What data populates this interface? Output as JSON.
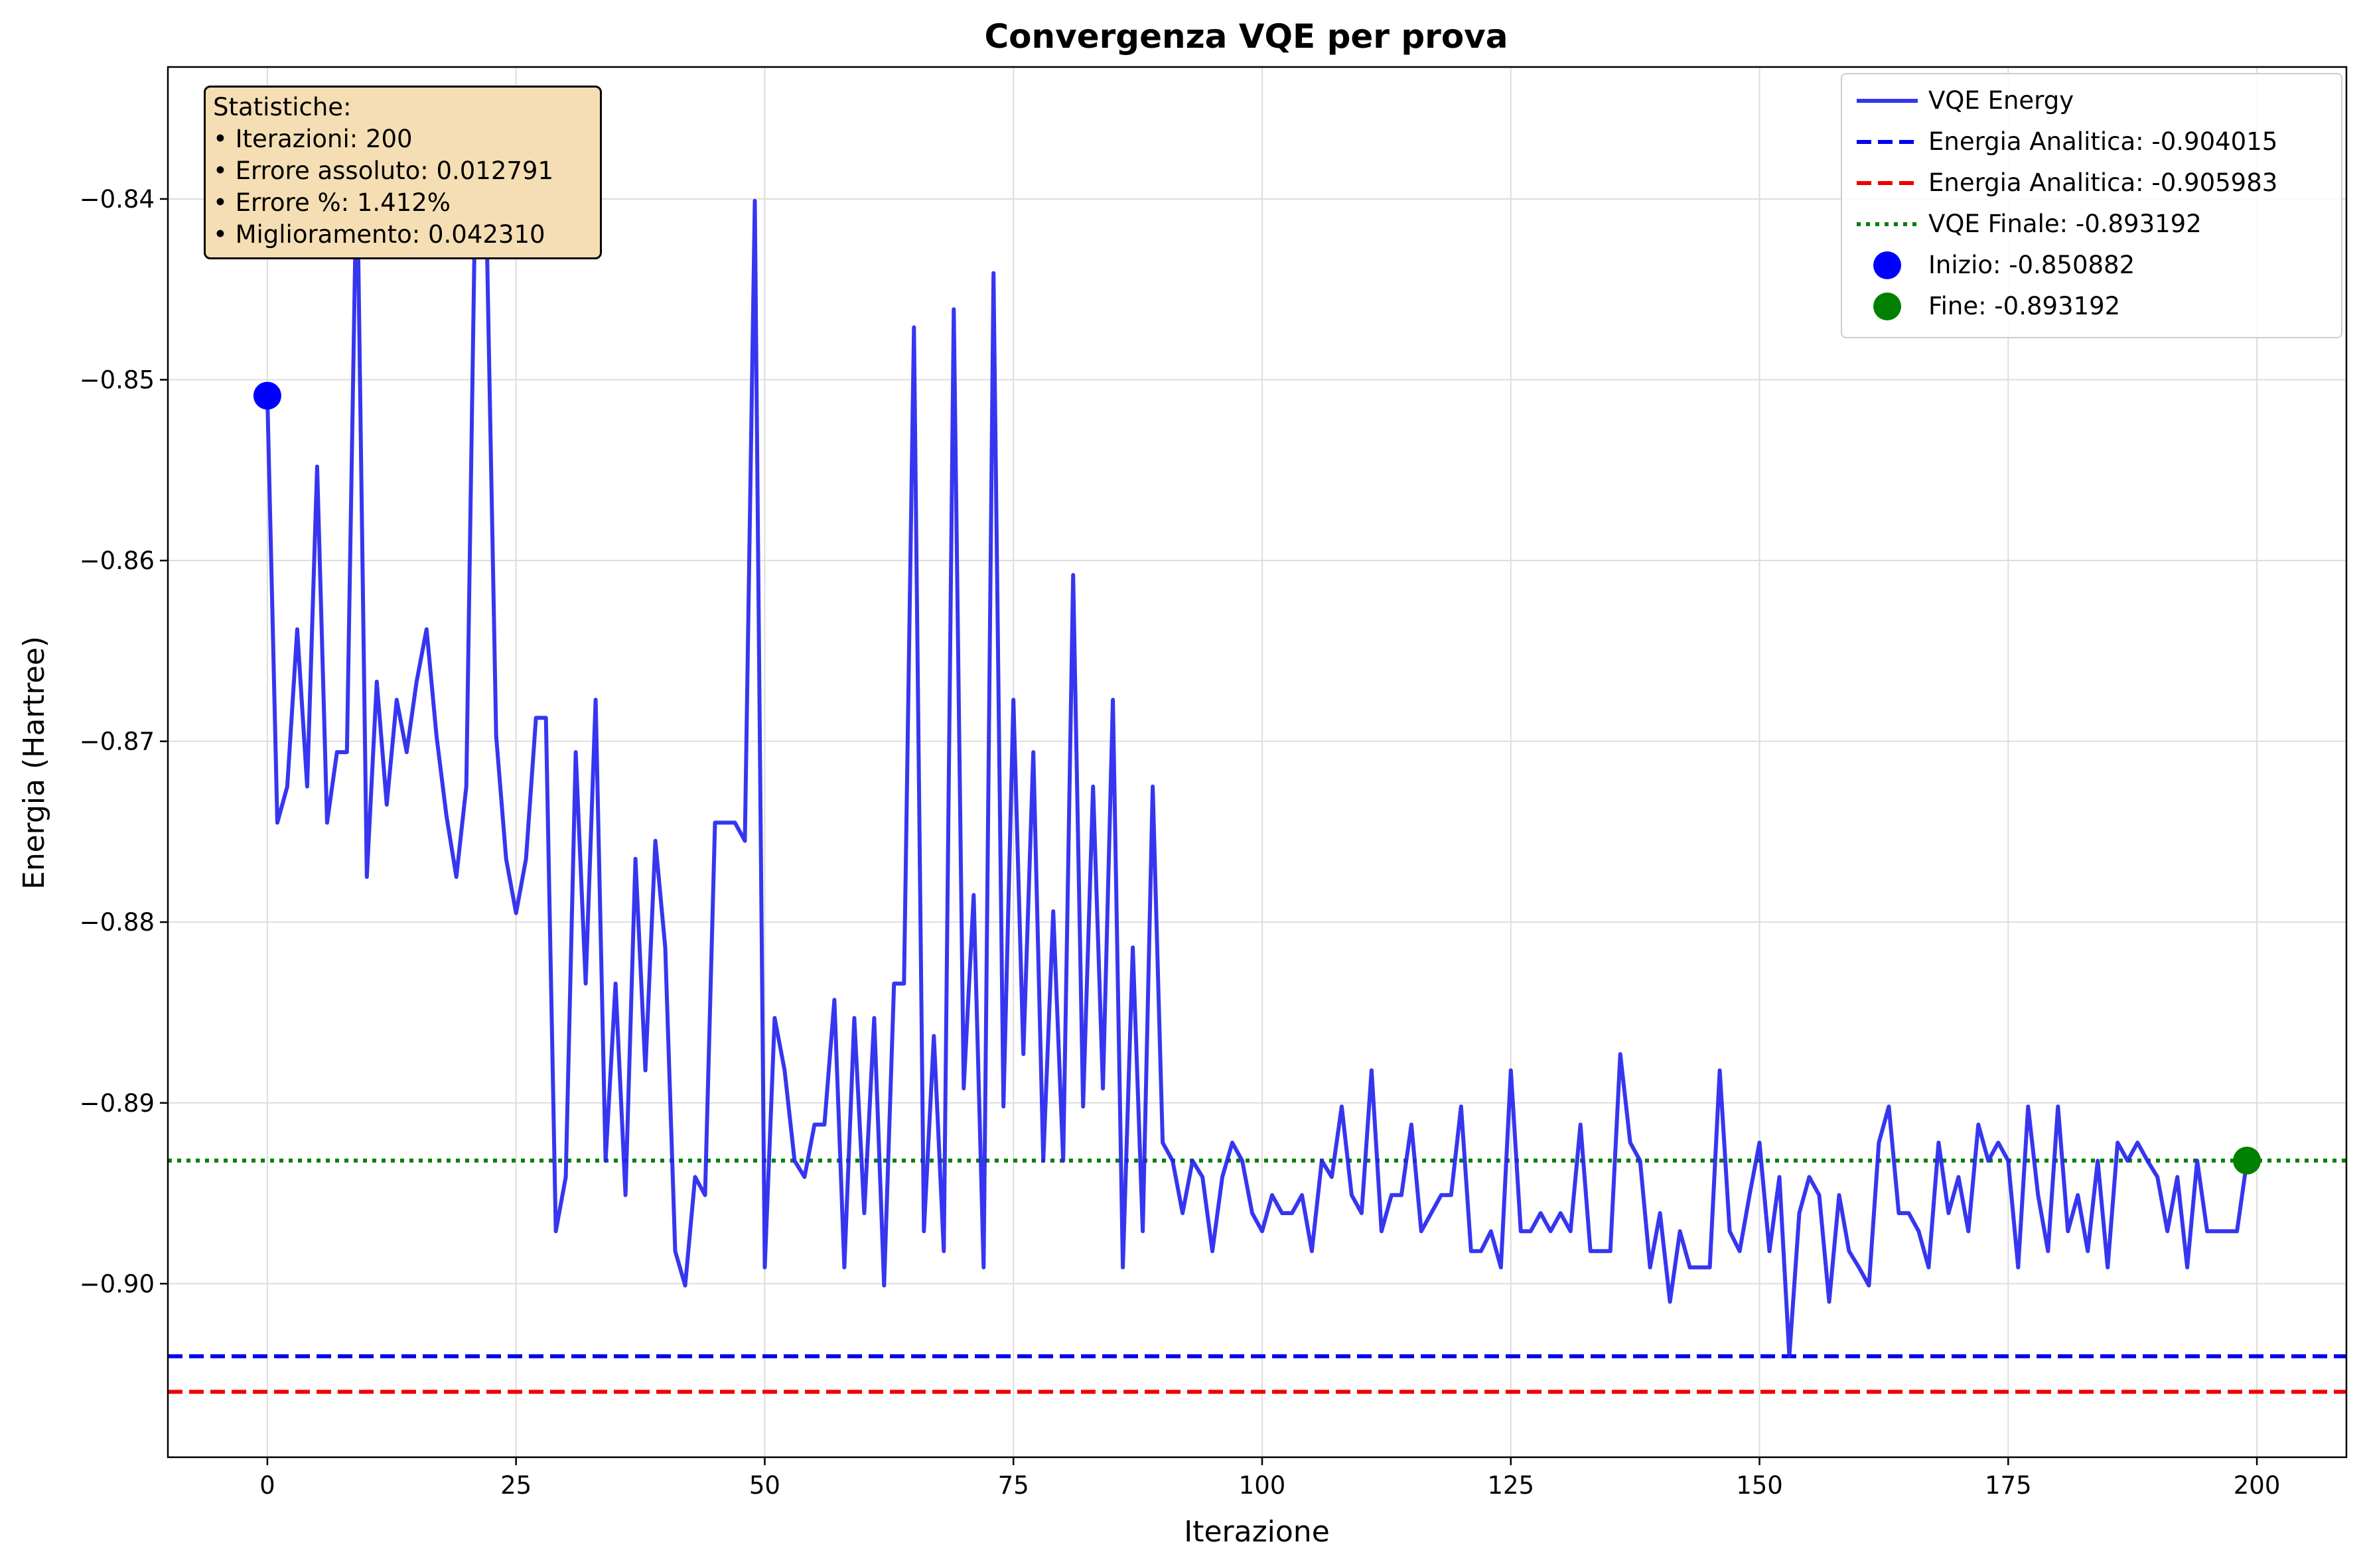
{
  "chart_data": {
    "type": "line",
    "title": "Convergenza VQE per prova",
    "xlabel": "Iterazione",
    "ylabel": "Energia (Hartree)",
    "xlim": [
      -10,
      209
    ],
    "ylim": [
      -0.9096,
      -0.8327
    ],
    "x_ticks": [
      0,
      25,
      50,
      75,
      100,
      125,
      150,
      175,
      200
    ],
    "y_ticks": [
      -0.84,
      -0.85,
      -0.86,
      -0.87,
      -0.88,
      -0.89,
      -0.9
    ],
    "x_tick_labels": [
      "0",
      "25",
      "50",
      "75",
      "100",
      "125",
      "150",
      "175",
      "200"
    ],
    "y_tick_labels": [
      "−0.84",
      "−0.85",
      "−0.86",
      "−0.87",
      "−0.88",
      "−0.89",
      "−0.90"
    ],
    "grid": true,
    "legend_position": "top-right",
    "series": [
      {
        "name": "VQE Energy",
        "color": "#2020ee",
        "style": "solid",
        "x_start": 0,
        "x_step": 1,
        "values": [
          -0.8509,
          -0.8745,
          -0.8725,
          -0.8638,
          -0.8725,
          -0.8548,
          -0.8745,
          -0.8706,
          -0.8706,
          -0.8375,
          -0.8775,
          -0.8667,
          -0.8735,
          -0.8677,
          -0.8706,
          -0.8667,
          -0.8638,
          -0.8697,
          -0.8741,
          -0.8775,
          -0.8725,
          -0.8362,
          -0.8404,
          -0.8697,
          -0.8765,
          -0.8795,
          -0.8765,
          -0.8687,
          -0.8687,
          -0.8971,
          -0.8941,
          -0.8706,
          -0.8834,
          -0.8677,
          -0.8932,
          -0.8834,
          -0.8951,
          -0.8765,
          -0.8882,
          -0.8755,
          -0.8814,
          -0.8982,
          -0.9001,
          -0.8941,
          -0.8951,
          -0.8745,
          -0.8745,
          -0.8745,
          -0.8755,
          -0.8401,
          -0.8991,
          -0.8853,
          -0.8882,
          -0.8932,
          -0.8941,
          -0.8912,
          -0.8912,
          -0.8843,
          -0.8991,
          -0.8853,
          -0.8961,
          -0.8853,
          -0.9001,
          -0.8834,
          -0.8834,
          -0.8471,
          -0.8971,
          -0.8863,
          -0.8982,
          -0.8461,
          -0.8892,
          -0.8785,
          -0.8991,
          -0.8441,
          -0.8902,
          -0.8677,
          -0.8873,
          -0.8706,
          -0.8932,
          -0.8794,
          -0.8932,
          -0.8608,
          -0.8902,
          -0.8725,
          -0.8892,
          -0.8677,
          -0.8991,
          -0.8814,
          -0.8971,
          -0.8725,
          -0.8922,
          -0.8932,
          -0.8961,
          -0.8932,
          -0.8941,
          -0.8982,
          -0.8941,
          -0.8922,
          -0.8932,
          -0.8961,
          -0.8971,
          -0.8951,
          -0.8961,
          -0.8961,
          -0.8951,
          -0.8982,
          -0.8932,
          -0.8941,
          -0.8902,
          -0.8951,
          -0.8961,
          -0.8882,
          -0.8971,
          -0.8951,
          -0.8951,
          -0.8912,
          -0.8971,
          -0.8961,
          -0.8951,
          -0.8951,
          -0.8902,
          -0.8982,
          -0.8982,
          -0.8971,
          -0.8991,
          -0.8882,
          -0.8971,
          -0.8971,
          -0.8961,
          -0.8971,
          -0.8961,
          -0.8971,
          -0.8912,
          -0.8982,
          -0.8982,
          -0.8982,
          -0.8873,
          -0.8922,
          -0.8932,
          -0.8991,
          -0.8961,
          -0.901,
          -0.8971,
          -0.8991,
          -0.8991,
          -0.8991,
          -0.8882,
          -0.8971,
          -0.8982,
          -0.8951,
          -0.8922,
          -0.8982,
          -0.8941,
          -0.904,
          -0.8961,
          -0.8941,
          -0.8951,
          -0.901,
          -0.8951,
          -0.8982,
          -0.8991,
          -0.9001,
          -0.8922,
          -0.8902,
          -0.8961,
          -0.8961,
          -0.8971,
          -0.8991,
          -0.8922,
          -0.8961,
          -0.8941,
          -0.8971,
          -0.8912,
          -0.8932,
          -0.8922,
          -0.8932,
          -0.8991,
          -0.8902,
          -0.8951,
          -0.8982,
          -0.8902,
          -0.8971,
          -0.8951,
          -0.8982,
          -0.8932,
          -0.8991,
          -0.8922,
          -0.8932,
          -0.8922,
          -0.8932,
          -0.8941,
          -0.8971,
          -0.8941,
          -0.8991,
          -0.8932,
          -0.8971,
          -0.8971,
          -0.8971,
          -0.8971,
          -0.8932
        ]
      }
    ],
    "reference_lines": [
      {
        "name": "Energia Analitica: -0.904015",
        "value": -0.904015,
        "color": "#0000ee",
        "style": "dashed"
      },
      {
        "name": "Energia Analitica: -0.905983",
        "value": -0.905983,
        "color": "#ee0000",
        "style": "dashed"
      },
      {
        "name": "VQE Finale: -0.893192",
        "value": -0.893192,
        "color": "#008000",
        "style": "dotted"
      }
    ],
    "markers": [
      {
        "name": "Inizio: -0.850882",
        "x": 0,
        "y": -0.850882,
        "color": "#0000ff"
      },
      {
        "name": "Fine: -0.893192",
        "x": 199,
        "y": -0.893192,
        "color": "#008000"
      }
    ]
  },
  "stats_box": {
    "title": "Statistiche:",
    "lines": [
      "• Iterazioni: 200",
      "• Errore assoluto: 0.012791",
      "• Errore %: 1.412%",
      "• Miglioramento: 0.042310"
    ]
  },
  "legend": {
    "items": [
      {
        "label": "VQE Energy",
        "color": "#3333ee",
        "kind": "line-solid"
      },
      {
        "label": "Energia Analitica: -0.904015",
        "color": "#0000ee",
        "kind": "line-dashed"
      },
      {
        "label": "Energia Analitica: -0.905983",
        "color": "#ee0000",
        "kind": "line-dashed"
      },
      {
        "label": "VQE Finale: -0.893192",
        "color": "#008000",
        "kind": "line-dotted"
      },
      {
        "label": "Inizio: -0.850882",
        "color": "#0000ff",
        "kind": "marker"
      },
      {
        "label": "Fine: -0.893192",
        "color": "#008000",
        "kind": "marker"
      }
    ]
  }
}
